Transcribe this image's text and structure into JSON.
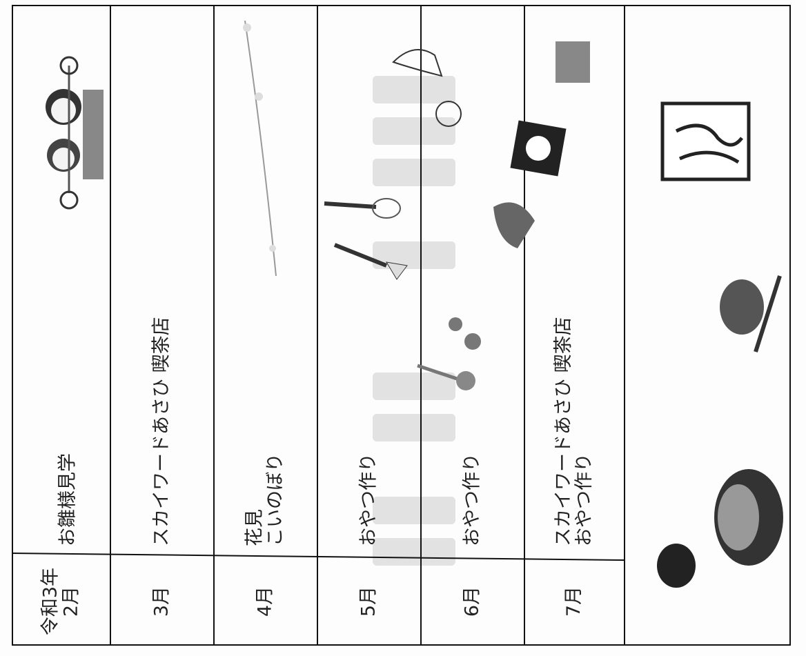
{
  "table": {
    "rows": [
      {
        "month": [
          "令和3年",
          "2月"
        ],
        "activity": [
          "お雛様見学"
        ]
      },
      {
        "month": [
          "3月"
        ],
        "activity": [
          "スカイワードあさひ 喫茶店"
        ]
      },
      {
        "month": [
          "4月"
        ],
        "activity": [
          "花見",
          "こいのぼり"
        ]
      },
      {
        "month": [
          "5月"
        ],
        "activity": [
          "おやつ作り"
        ]
      },
      {
        "month": [
          "6月"
        ],
        "activity": [
          "おやつ作り"
        ]
      },
      {
        "month": [
          "7月"
        ],
        "activity": [
          "スカイワードあさひ 喫茶店",
          "おやつ作り"
        ]
      }
    ]
  }
}
